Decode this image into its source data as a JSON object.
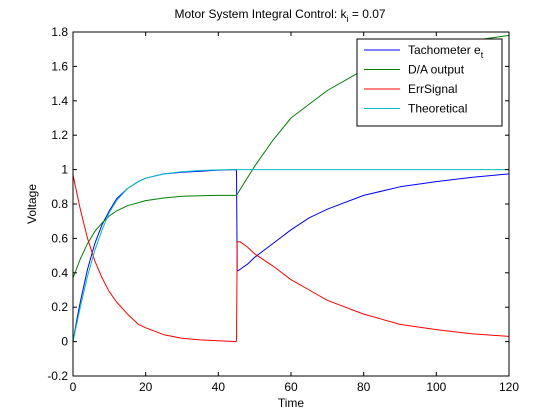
{
  "chart_data": {
    "type": "line",
    "title_main": "Motor System Integral Control: k",
    "title_sub": "i",
    "title_suffix": " = 0.07",
    "xlabel": "Time",
    "ylabel": "Voltage",
    "xlim": [
      0,
      120
    ],
    "ylim": [
      -0.2,
      1.8
    ],
    "xticks": [
      0,
      20,
      40,
      60,
      80,
      100,
      120
    ],
    "yticks": [
      -0.2,
      0,
      0.2,
      0.4,
      0.6,
      0.8,
      1,
      1.2,
      1.4,
      1.6,
      1.8
    ],
    "grid": false,
    "legend_position": "top-right",
    "series": [
      {
        "name": "Tachometer e",
        "name_sub": "t",
        "color": "#0000ff",
        "x": [
          0,
          1,
          2,
          4,
          6,
          8,
          10,
          12,
          15,
          18,
          20,
          25,
          30,
          35,
          40,
          44.9,
          45,
          45.2,
          46,
          48,
          50,
          55,
          60,
          65,
          70,
          80,
          90,
          100,
          110,
          120
        ],
        "y": [
          0,
          0.12,
          0.23,
          0.42,
          0.57,
          0.68,
          0.76,
          0.83,
          0.89,
          0.93,
          0.95,
          0.975,
          0.985,
          0.99,
          0.997,
          1.0,
          0.99,
          0.41,
          0.42,
          0.45,
          0.49,
          0.57,
          0.65,
          0.72,
          0.77,
          0.85,
          0.9,
          0.93,
          0.955,
          0.975
        ]
      },
      {
        "name": "D/A output",
        "color": "#007f00",
        "x": [
          0,
          2,
          4,
          6,
          8,
          10,
          12,
          15,
          20,
          25,
          30,
          35,
          40,
          45,
          50,
          55,
          60,
          70,
          80,
          90,
          100,
          110,
          120
        ],
        "y": [
          0.37,
          0.48,
          0.57,
          0.64,
          0.69,
          0.73,
          0.76,
          0.79,
          0.82,
          0.835,
          0.845,
          0.848,
          0.85,
          0.85,
          1.02,
          1.17,
          1.3,
          1.46,
          1.58,
          1.66,
          1.71,
          1.75,
          1.78
        ]
      },
      {
        "name": "ErrSignal",
        "color": "#ff0000",
        "x": [
          0,
          1,
          2,
          4,
          6,
          8,
          10,
          12,
          15,
          18,
          20,
          25,
          30,
          35,
          40,
          44.9,
          45,
          45.2,
          46,
          48,
          50,
          55,
          60,
          65,
          70,
          80,
          90,
          100,
          110,
          120
        ],
        "y": [
          0.97,
          0.87,
          0.77,
          0.6,
          0.47,
          0.37,
          0.29,
          0.23,
          0.16,
          0.1,
          0.08,
          0.04,
          0.02,
          0.01,
          0.005,
          0.0,
          0.01,
          0.58,
          0.58,
          0.55,
          0.51,
          0.44,
          0.36,
          0.3,
          0.24,
          0.16,
          0.1,
          0.07,
          0.045,
          0.03
        ]
      },
      {
        "name": "Theoretical",
        "color": "#00bfbf",
        "x": [
          0,
          1,
          2,
          4,
          6,
          8,
          10,
          12,
          15,
          18,
          20,
          25,
          30,
          35,
          40,
          45,
          50,
          60,
          80,
          100,
          120
        ],
        "y": [
          0,
          0.1,
          0.2,
          0.38,
          0.53,
          0.65,
          0.75,
          0.82,
          0.89,
          0.93,
          0.95,
          0.975,
          0.988,
          0.995,
          0.998,
          1.0,
          1.0,
          1.0,
          1.0,
          1.0,
          1.0
        ]
      }
    ]
  }
}
